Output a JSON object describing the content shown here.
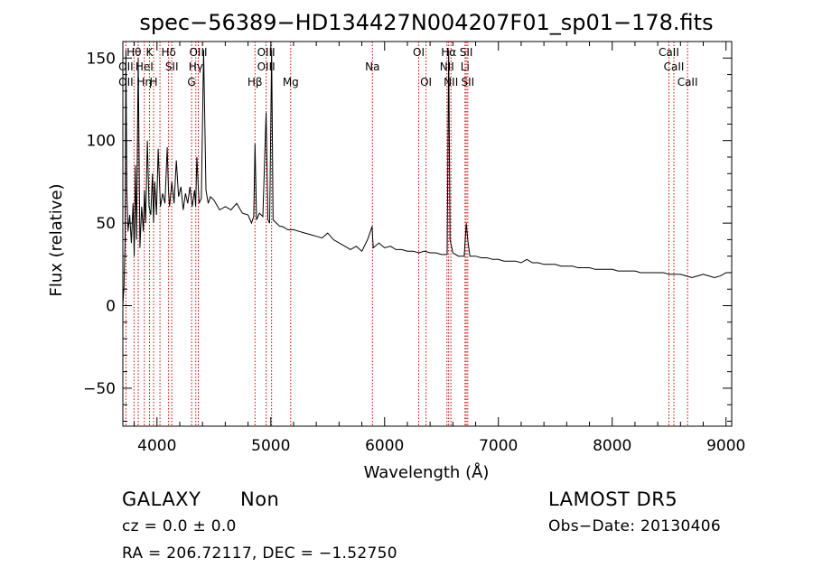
{
  "chart_data": {
    "type": "line",
    "title": "spec−56389−HD134427N004207F01_sp01−178.fits",
    "xlabel": "Wavelength (Å)",
    "ylabel": "Flux (relative)",
    "xlim": [
      3700,
      9050
    ],
    "ylim": [
      -73,
      160
    ],
    "xticks": [
      4000,
      5000,
      6000,
      7000,
      8000,
      9000
    ],
    "xtick_labels": [
      "4000",
      "5000",
      "6000",
      "7000",
      "8000",
      "9000"
    ],
    "yticks": [
      -50,
      0,
      50,
      100,
      150
    ],
    "ytick_labels": [
      "−50",
      "0",
      "50",
      "100",
      "150"
    ],
    "grid": false,
    "series": [
      {
        "x": [
          3700,
          3710,
          3720,
          3727,
          3735,
          3745,
          3760,
          3775,
          3790,
          3800,
          3810,
          3820,
          3835,
          3850,
          3865,
          3880,
          3890,
          3900,
          3915,
          3930,
          3945,
          3960,
          3970,
          3980,
          3995,
          4010,
          4030,
          4050,
          4070,
          4090,
          4101,
          4110,
          4130,
          4150,
          4170,
          4190,
          4210,
          4230,
          4250,
          4270,
          4290,
          4310,
          4330,
          4340,
          4350,
          4370,
          4390,
          4410,
          4430,
          4450,
          4470,
          4500,
          4550,
          4600,
          4650,
          4700,
          4750,
          4800,
          4830,
          4850,
          4861,
          4875,
          4900,
          4930,
          4959,
          4975,
          4990,
          5007,
          5020,
          5050,
          5080,
          5100,
          5150,
          5200,
          5250,
          5300,
          5350,
          5400,
          5450,
          5500,
          5550,
          5600,
          5650,
          5700,
          5750,
          5800,
          5850,
          5890,
          5900,
          5950,
          6000,
          6050,
          6100,
          6150,
          6200,
          6250,
          6300,
          6350,
          6400,
          6450,
          6500,
          6550,
          6563,
          6575,
          6600,
          6650,
          6700,
          6717,
          6731,
          6750,
          6800,
          6850,
          6900,
          6950,
          7000,
          7050,
          7100,
          7150,
          7200,
          7250,
          7300,
          7350,
          7400,
          7450,
          7500,
          7550,
          7600,
          7650,
          7700,
          7750,
          7800,
          7850,
          7900,
          7950,
          8000,
          8050,
          8100,
          8150,
          8200,
          8250,
          8300,
          8350,
          8400,
          8450,
          8500,
          8550,
          8600,
          8650,
          8700,
          8750,
          8800,
          8850,
          8900,
          8950,
          9000,
          9050
        ],
        "y": [
          0,
          12,
          40,
          155,
          70,
          45,
          55,
          38,
          62,
          30,
          85,
          40,
          150,
          35,
          60,
          45,
          70,
          50,
          100,
          60,
          55,
          80,
          50,
          75,
          55,
          95,
          60,
          68,
          62,
          96,
          70,
          60,
          75,
          62,
          88,
          66,
          72,
          58,
          68,
          62,
          72,
          60,
          70,
          60,
          90,
          62,
          65,
          155,
          70,
          62,
          66,
          64,
          58,
          60,
          58,
          62,
          56,
          55,
          50,
          54,
          98,
          52,
          56,
          54,
          117,
          52,
          50,
          155,
          52,
          50,
          48,
          48,
          46,
          46,
          45,
          44,
          43,
          42,
          41,
          44,
          40,
          38,
          36,
          34,
          36,
          33,
          40,
          48,
          35,
          38,
          35,
          36,
          34,
          34,
          33,
          33,
          32,
          33,
          32,
          32,
          31,
          31,
          155,
          40,
          32,
          30,
          30,
          50,
          40,
          30,
          30,
          29,
          29,
          28,
          28,
          27,
          27,
          27,
          26,
          28,
          26,
          26,
          25,
          25,
          25,
          24,
          24,
          24,
          23,
          23,
          23,
          22,
          22,
          22,
          22,
          21,
          21,
          21,
          21,
          20,
          20,
          20,
          20,
          20,
          19,
          19,
          19,
          18,
          17,
          18,
          19,
          18,
          17,
          18,
          20,
          20
        ]
      }
    ],
    "lines": [
      {
        "wave": 3727,
        "labels": [
          {
            "t": "OII",
            "row": 1
          },
          {
            "t": "OII",
            "row": 2
          }
        ]
      },
      {
        "wave": 3798,
        "labels": [
          {
            "t": "Hθ",
            "row": 0
          }
        ]
      },
      {
        "wave": 3835,
        "labels": []
      },
      {
        "wave": 3889,
        "labels": [
          {
            "t": "HeI",
            "row": 1
          },
          {
            "t": "Hη",
            "row": 2
          }
        ]
      },
      {
        "wave": 3934,
        "labels": [
          {
            "t": "K",
            "row": 0
          }
        ]
      },
      {
        "wave": 3970,
        "labels": [
          {
            "t": "H",
            "row": 2
          }
        ]
      },
      {
        "wave": 4026,
        "labels": []
      },
      {
        "wave": 4102,
        "labels": [
          {
            "t": "Hδ",
            "row": 0
          }
        ]
      },
      {
        "wave": 4130,
        "labels": [
          {
            "t": "SII",
            "row": 1
          }
        ]
      },
      {
        "wave": 4304,
        "labels": [
          {
            "t": "G",
            "row": 2
          }
        ]
      },
      {
        "wave": 4341,
        "labels": [
          {
            "t": "Hγ",
            "row": 1
          }
        ]
      },
      {
        "wave": 4363,
        "labels": [
          {
            "t": "OIII",
            "row": 0
          }
        ]
      },
      {
        "wave": 4861,
        "labels": [
          {
            "t": "Hβ",
            "row": 2
          }
        ]
      },
      {
        "wave": 4959,
        "labels": [
          {
            "t": "OIII",
            "row": 0
          },
          {
            "t": "OIII",
            "row": 1
          }
        ]
      },
      {
        "wave": 5007,
        "labels": []
      },
      {
        "wave": 5175,
        "labels": [
          {
            "t": "Mg",
            "row": 2
          }
        ]
      },
      {
        "wave": 5893,
        "labels": [
          {
            "t": "Na",
            "row": 1
          }
        ]
      },
      {
        "wave": 6300,
        "labels": [
          {
            "t": "OI",
            "row": 0
          }
        ]
      },
      {
        "wave": 6364,
        "labels": [
          {
            "t": "OI",
            "row": 2
          }
        ]
      },
      {
        "wave": 6548,
        "labels": [
          {
            "t": "NII",
            "row": 1
          }
        ]
      },
      {
        "wave": 6563,
        "labels": [
          {
            "t": "Hα",
            "row": 0
          }
        ]
      },
      {
        "wave": 6583,
        "labels": [
          {
            "t": "NII",
            "row": 2
          }
        ]
      },
      {
        "wave": 6707,
        "labels": [
          {
            "t": "Li",
            "row": 1
          }
        ]
      },
      {
        "wave": 6717,
        "labels": [
          {
            "t": "SII",
            "row": 0
          }
        ]
      },
      {
        "wave": 6731,
        "labels": [
          {
            "t": "SII",
            "row": 2
          }
        ]
      },
      {
        "wave": 8498,
        "labels": [
          {
            "t": "CaII",
            "row": 0
          }
        ]
      },
      {
        "wave": 8542,
        "labels": [
          {
            "t": "CaII",
            "row": 1
          }
        ]
      },
      {
        "wave": 8662,
        "labels": [
          {
            "t": "CaII",
            "row": 2
          }
        ]
      }
    ]
  },
  "info": {
    "class": "GALAXY",
    "subclass": "Non",
    "survey": "LAMOST DR5",
    "cz": "cz = 0.0 ± 0.0",
    "obs_date": "Obs−Date: 20130406",
    "coords": "RA = 206.72117, DEC =  −1.52750"
  }
}
